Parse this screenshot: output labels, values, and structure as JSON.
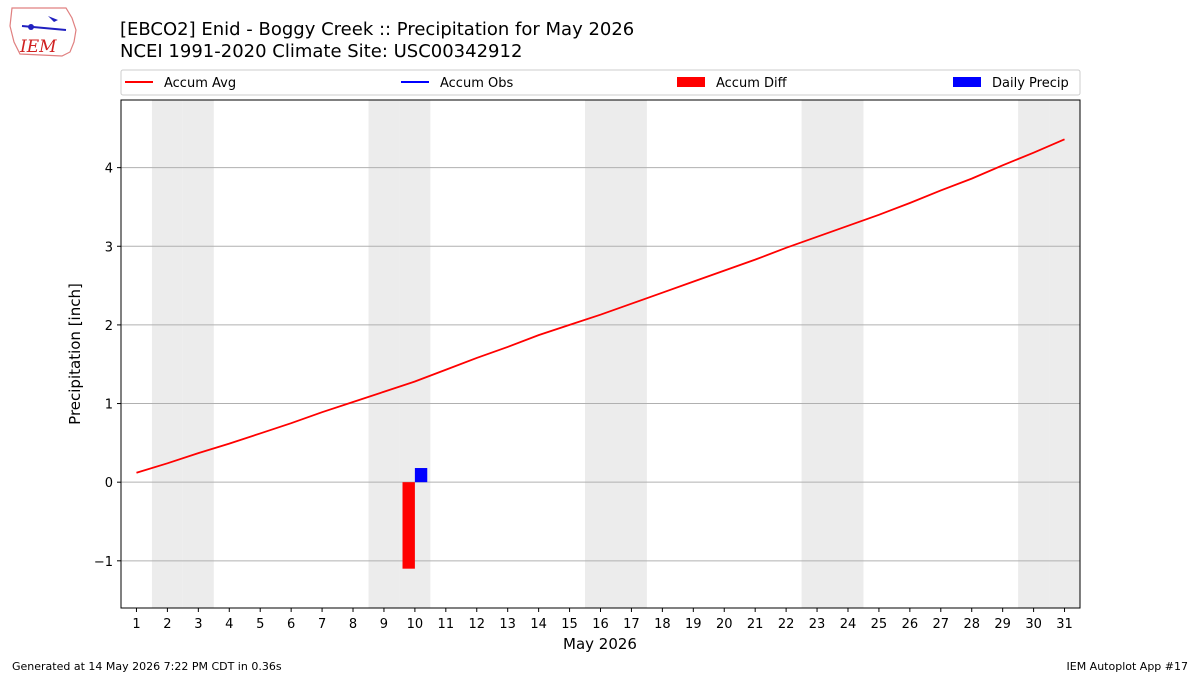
{
  "logo_text": "IEM",
  "footer": {
    "left": "Generated at 14 May 2026 7:22 PM CDT in 0.36s",
    "right": "IEM Autoplot App #17"
  },
  "chart_data": {
    "type": "line-bar",
    "title": "[EBCO2] Enid - Boggy Creek :: Precipitation for May 2026",
    "subtitle": "NCEI 1991-2020 Climate Site: USC00342912",
    "x_label": "May 2026",
    "y_label": "Precipitation [inch]",
    "x": [
      1,
      2,
      3,
      4,
      5,
      6,
      7,
      8,
      9,
      10,
      11,
      12,
      13,
      14,
      15,
      16,
      17,
      18,
      19,
      20,
      21,
      22,
      23,
      24,
      25,
      26,
      27,
      28,
      29,
      30,
      31
    ],
    "shaded_days": [
      2,
      3,
      9,
      10,
      16,
      17,
      23,
      24,
      30,
      31
    ],
    "series": [
      {
        "name": "Accum Avg",
        "color": "#ff0000",
        "kind": "line",
        "values": [
          0.12,
          0.24,
          0.37,
          0.49,
          0.62,
          0.75,
          0.89,
          1.02,
          1.15,
          1.28,
          1.43,
          1.58,
          1.72,
          1.87,
          2.0,
          2.13,
          2.27,
          2.41,
          2.55,
          2.69,
          2.83,
          2.98,
          3.12,
          3.26,
          3.4,
          3.55,
          3.71,
          3.86,
          4.03,
          4.19,
          4.36
        ]
      },
      {
        "name": "Accum Obs",
        "color": "#0000ff",
        "kind": "line",
        "values": [
          null,
          null,
          null,
          null,
          null,
          null,
          null,
          null,
          null,
          0.18,
          null,
          null,
          null,
          null,
          null,
          null,
          null,
          null,
          null,
          null,
          null,
          null,
          null,
          null,
          null,
          null,
          null,
          null,
          null,
          null,
          null
        ]
      },
      {
        "name": "Accum Diff",
        "color": "#ff0000",
        "kind": "bar",
        "values": [
          null,
          null,
          null,
          null,
          null,
          null,
          null,
          null,
          null,
          -1.1,
          null,
          null,
          null,
          null,
          null,
          null,
          null,
          null,
          null,
          null,
          null,
          null,
          null,
          null,
          null,
          null,
          null,
          null,
          null,
          null,
          null
        ]
      },
      {
        "name": "Daily Precip",
        "color": "#0000ff",
        "kind": "bar",
        "values": [
          null,
          null,
          null,
          null,
          null,
          null,
          null,
          null,
          null,
          0.18,
          null,
          null,
          null,
          null,
          null,
          null,
          null,
          null,
          null,
          null,
          null,
          null,
          null,
          null,
          null,
          null,
          null,
          null,
          null,
          null,
          null
        ]
      }
    ],
    "xlim": [
      0.5,
      31.5
    ],
    "ylim": [
      -1.6,
      4.86
    ],
    "xticks": [
      1,
      2,
      3,
      4,
      5,
      6,
      7,
      8,
      9,
      10,
      11,
      12,
      13,
      14,
      15,
      16,
      17,
      18,
      19,
      20,
      21,
      22,
      23,
      24,
      25,
      26,
      27,
      28,
      29,
      30,
      31
    ],
    "yticks": [
      {
        "value": -1,
        "label": "−1"
      },
      0,
      1,
      2,
      3,
      4
    ],
    "grid": true,
    "legend": "top"
  }
}
